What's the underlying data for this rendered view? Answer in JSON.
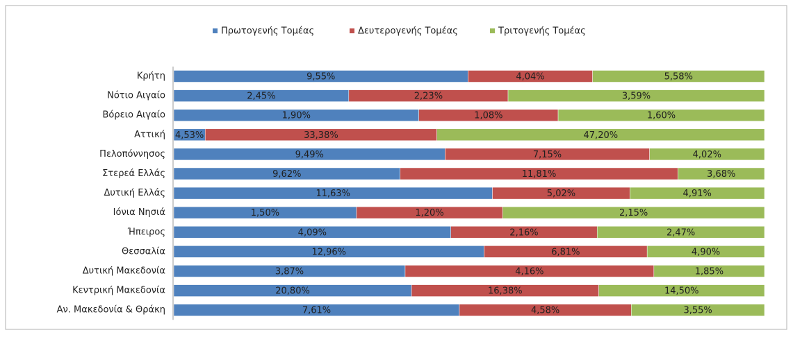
{
  "chart_data": {
    "type": "bar",
    "orientation": "horizontal",
    "stacking": "percent",
    "categories": [
      "Κρήτη",
      "Νότιο Αιγαίο",
      "Βόρειο Αιγαίο",
      "Αττική",
      "Πελοπόννησος",
      "Στερεά Ελλάς",
      "Δυτική Ελλάς",
      "Ιόνια Νησιά",
      "Ήπειρος",
      "Θεσσαλία",
      "Δυτική Μακεδονία",
      "Κεντρική Μακεδονία",
      "Αν. Μακεδονία & Θράκη"
    ],
    "series": [
      {
        "name": "Πρωτογενής Τομέας",
        "color": "#4f81bd",
        "values": [
          9.55,
          2.45,
          1.9,
          4.53,
          9.49,
          9.62,
          11.63,
          1.5,
          4.09,
          12.96,
          3.87,
          20.8,
          7.61
        ],
        "value_labels": [
          "9,55%",
          "2,45%",
          "1,90%",
          "4,53%",
          "9,49%",
          "9,62%",
          "11,63%",
          "1,50%",
          "4,09%",
          "12,96%",
          "3,87%",
          "20,80%",
          "7,61%"
        ]
      },
      {
        "name": "Δευτερογενής Τομέας",
        "color": "#c0504d",
        "values": [
          4.04,
          2.23,
          1.08,
          33.38,
          7.15,
          11.81,
          5.02,
          1.2,
          2.16,
          6.81,
          4.16,
          16.38,
          4.58
        ],
        "value_labels": [
          "4,04%",
          "2,23%",
          "1,08%",
          "33,38%",
          "7,15%",
          "11,81%",
          "5,02%",
          "1,20%",
          "2,16%",
          "6,81%",
          "4,16%",
          "16,38%",
          "4,58%"
        ]
      },
      {
        "name": "Τριτογενής Τομέας",
        "color": "#9bbb59",
        "values": [
          5.58,
          3.59,
          1.6,
          47.2,
          4.02,
          3.68,
          4.91,
          2.15,
          2.47,
          4.9,
          1.85,
          14.5,
          3.55
        ],
        "value_labels": [
          "5,58%",
          "3,59%",
          "1,60%",
          "47,20%",
          "4,02%",
          "3,68%",
          "4,91%",
          "2,15%",
          "2,47%",
          "4,90%",
          "1,85%",
          "14,50%",
          "3,55%"
        ]
      }
    ],
    "legend": "top"
  }
}
